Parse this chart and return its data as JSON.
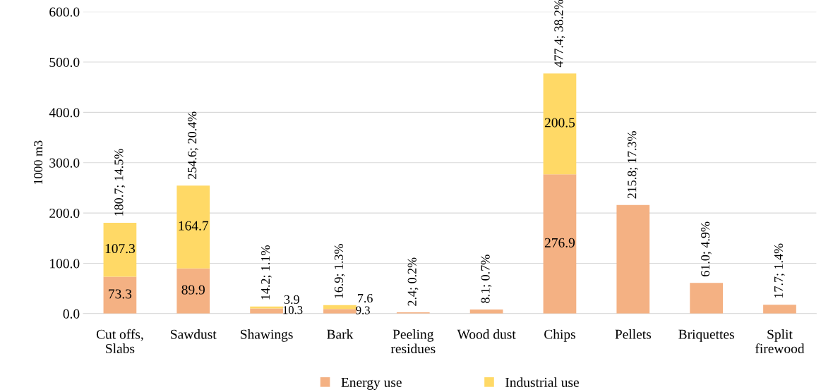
{
  "chart_data": {
    "type": "bar",
    "stacked": true,
    "ylabel": "1000 m3",
    "categories": [
      "Cut offs,\nSlabs",
      "Sawdust",
      "Shawings",
      "Bark",
      "Peeling\nresidues",
      "Wood dust",
      "Chips",
      "Pellets",
      "Briquettes",
      "Split\nfirewood"
    ],
    "series": [
      {
        "name": "Energy use",
        "color": "#f4b183",
        "values": [
          73.3,
          89.9,
          10.3,
          9.3,
          2.4,
          8.1,
          276.9,
          215.8,
          61.0,
          17.7
        ],
        "value_labels": [
          "73.3",
          "89.9",
          "10.3",
          "9.3",
          null,
          null,
          "276.9",
          null,
          null,
          null
        ]
      },
      {
        "name": "Industrial use",
        "color": "#ffd966",
        "values": [
          107.3,
          164.7,
          3.9,
          7.6,
          null,
          null,
          200.5,
          null,
          null,
          null
        ],
        "value_labels": [
          "107.3",
          "164.7",
          "3.9",
          "7.6",
          null,
          null,
          "200.5",
          null,
          null,
          null
        ]
      }
    ],
    "totals": [
      "180.7; 14.5%",
      "254.6; 20.4%",
      "14.2; 1.1%",
      "16.9; 1.3%",
      "2.4; 0.2%",
      "8.1; 0.7%",
      "477.4; 38.2%",
      "215.8; 17.3%",
      "61.0; 4.9%",
      "17.7; 1.4%"
    ],
    "ylim": [
      0,
      600
    ],
    "yticks": [
      {
        "value": 0,
        "label": "0.0"
      },
      {
        "value": 100,
        "label": "100.0"
      },
      {
        "value": 200,
        "label": "200.0"
      },
      {
        "value": 300,
        "label": "300.0"
      },
      {
        "value": 400,
        "label": "400.0"
      },
      {
        "value": 500,
        "label": "500.0"
      },
      {
        "value": 600,
        "label": "600.0"
      }
    ],
    "grid": "y",
    "legend": "bottom"
  }
}
